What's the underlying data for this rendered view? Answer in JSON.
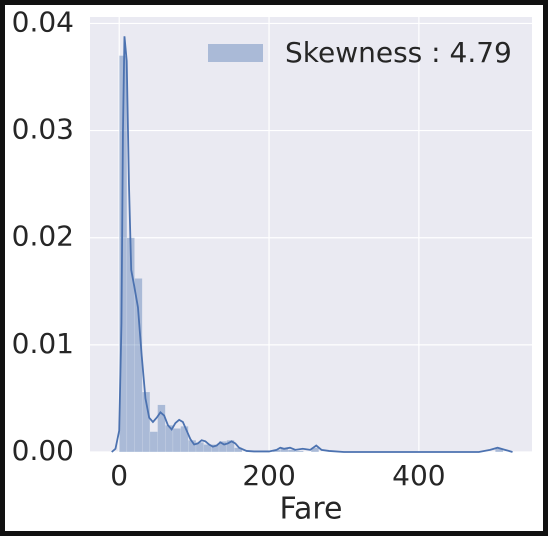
{
  "chart_data": {
    "type": "histogram",
    "name": "Skewness : 4.79",
    "color": "#4c72b0",
    "bins": [
      0,
      10.25,
      20.49,
      30.74,
      40.99,
      51.23,
      61.48,
      71.73,
      81.97,
      92.22,
      102.47,
      112.71,
      122.96,
      133.21,
      143.45,
      153.7,
      163.95,
      174.19,
      184.44,
      194.69,
      204.93,
      215.18,
      225.43,
      235.67,
      245.92,
      256.16,
      266.41,
      276.66,
      286.9,
      297.15,
      307.4,
      317.64,
      327.89,
      338.14,
      348.38,
      358.63,
      368.88,
      379.12,
      389.37,
      399.62,
      409.86,
      420.11,
      430.36,
      440.6,
      450.85,
      461.1,
      471.34,
      481.59,
      491.84,
      502.08,
      512.33
    ],
    "values": [
      0.037,
      0.02,
      0.0162,
      0.0056,
      0.0019,
      0.0044,
      0.0025,
      0.0022,
      0.0024,
      0.0011,
      0.0009,
      0.0007,
      0.0007,
      0.001,
      0.0011,
      0.0004,
      0,
      0,
      0,
      0,
      0.0002,
      0.0003,
      0.0002,
      0.0001,
      0,
      0.0004,
      0,
      0,
      0,
      0,
      0,
      0,
      0,
      0,
      0,
      0,
      0,
      0,
      0,
      0,
      0,
      0,
      0,
      0,
      0,
      0,
      0,
      0,
      0,
      0.0003
    ],
    "kde": {
      "color": "#4c72b0",
      "x": [
        -10,
        -5,
        0,
        3,
        5,
        7,
        10,
        13,
        16,
        20,
        25,
        30,
        35,
        40,
        45,
        50,
        55,
        60,
        65,
        70,
        75,
        80,
        85,
        90,
        95,
        100,
        105,
        110,
        115,
        120,
        125,
        130,
        135,
        140,
        145,
        150,
        155,
        160,
        170,
        180,
        200,
        210,
        215,
        220,
        228,
        235,
        245,
        255,
        263,
        270,
        280,
        300,
        400,
        480,
        495,
        505,
        515,
        525
      ],
      "values": [
        0,
        0.0003,
        0.002,
        0.012,
        0.03,
        0.0388,
        0.0365,
        0.025,
        0.017,
        0.0155,
        0.0135,
        0.009,
        0.005,
        0.0032,
        0.0028,
        0.0032,
        0.0037,
        0.0034,
        0.0025,
        0.0021,
        0.0027,
        0.003,
        0.0028,
        0.002,
        0.0012,
        0.0007,
        0.0008,
        0.0011,
        0.001,
        0.0007,
        0.0005,
        0.0006,
        0.0009,
        0.0007,
        0.0008,
        0.001,
        0.0008,
        0.0004,
        0.0001,
        5e-05,
        5e-05,
        0.0002,
        0.0004,
        0.0003,
        0.0004,
        0.0002,
        0.0003,
        0.0002,
        0.0006,
        0.0002,
        0.0001,
        0,
        0,
        0,
        0.0002,
        0.0004,
        0.0002,
        0
      ]
    },
    "xlabel": "Fare",
    "xlim": [
      -39,
      551
    ],
    "ylim": [
      0,
      0.0406
    ],
    "xticks": [
      0,
      200,
      400
    ],
    "yticks": [
      {
        "value": 0,
        "label": "0.00"
      },
      {
        "value": 0.01,
        "label": "0.01"
      },
      {
        "value": 0.02,
        "label": "0.02"
      },
      {
        "value": 0.03,
        "label": "0.03"
      },
      {
        "value": 0.04,
        "label": "0.04"
      }
    ],
    "grid": true,
    "legend": "upper right"
  }
}
